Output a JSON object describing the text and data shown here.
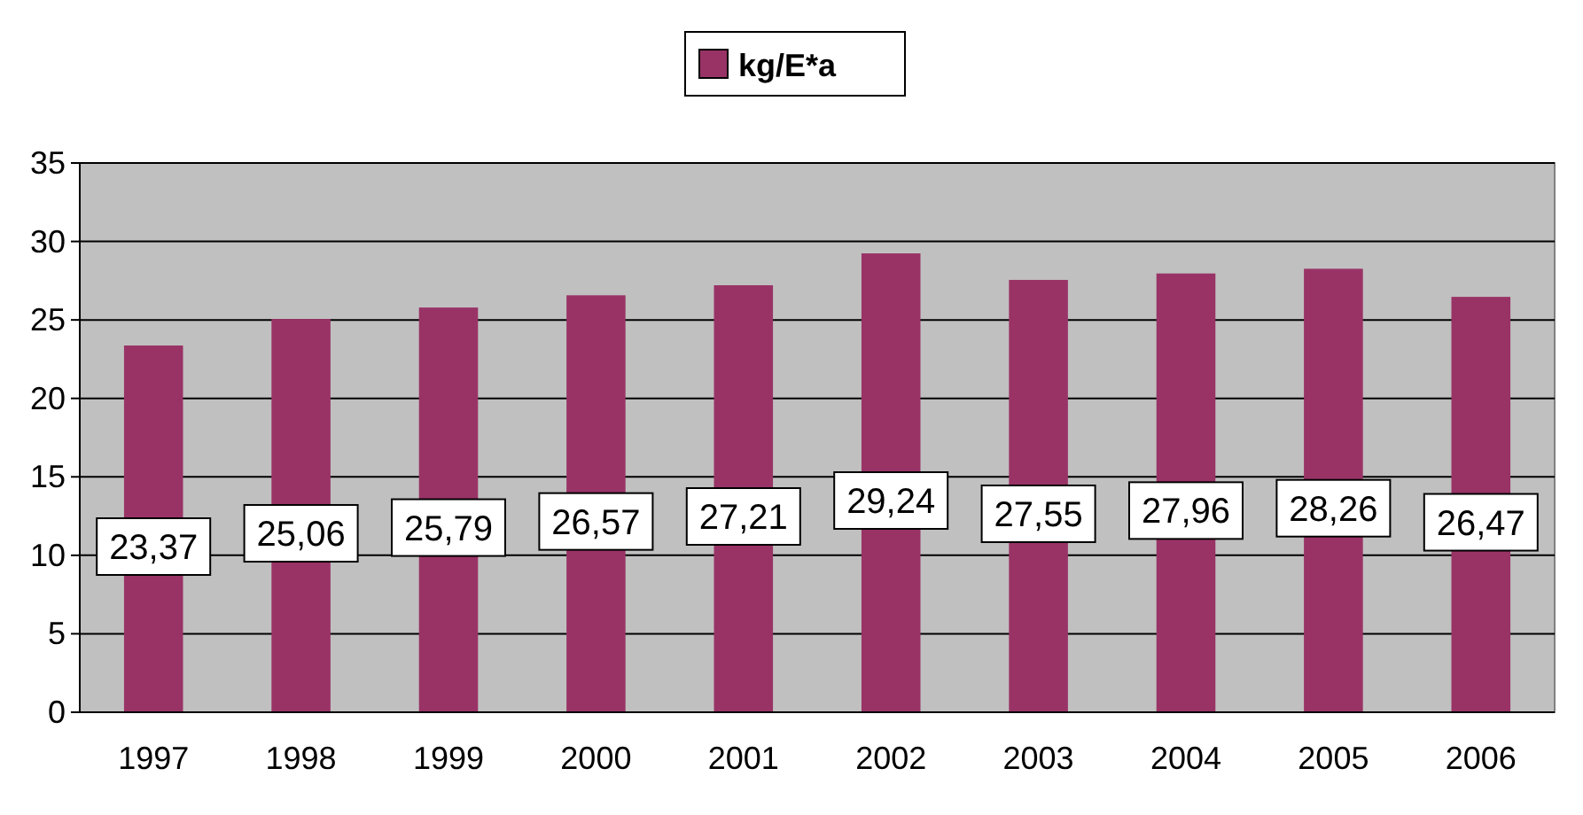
{
  "chart_data": {
    "type": "bar",
    "categories": [
      "1997",
      "1998",
      "1999",
      "2000",
      "2001",
      "2002",
      "2003",
      "2004",
      "2005",
      "2006"
    ],
    "series": [
      {
        "name": "kg/E*a",
        "color": "#993366",
        "values": [
          23.37,
          25.06,
          25.79,
          26.57,
          27.21,
          29.24,
          27.55,
          27.96,
          28.26,
          26.47
        ]
      }
    ],
    "value_labels": [
      "23,37",
      "25,06",
      "25,79",
      "26,57",
      "27,21",
      "29,24",
      "27,55",
      "27,96",
      "28,26",
      "26,47"
    ],
    "ylim": [
      0,
      35
    ],
    "yticks": [
      0,
      5,
      10,
      15,
      20,
      25,
      30,
      35
    ],
    "grid": "y",
    "legend": "top"
  }
}
